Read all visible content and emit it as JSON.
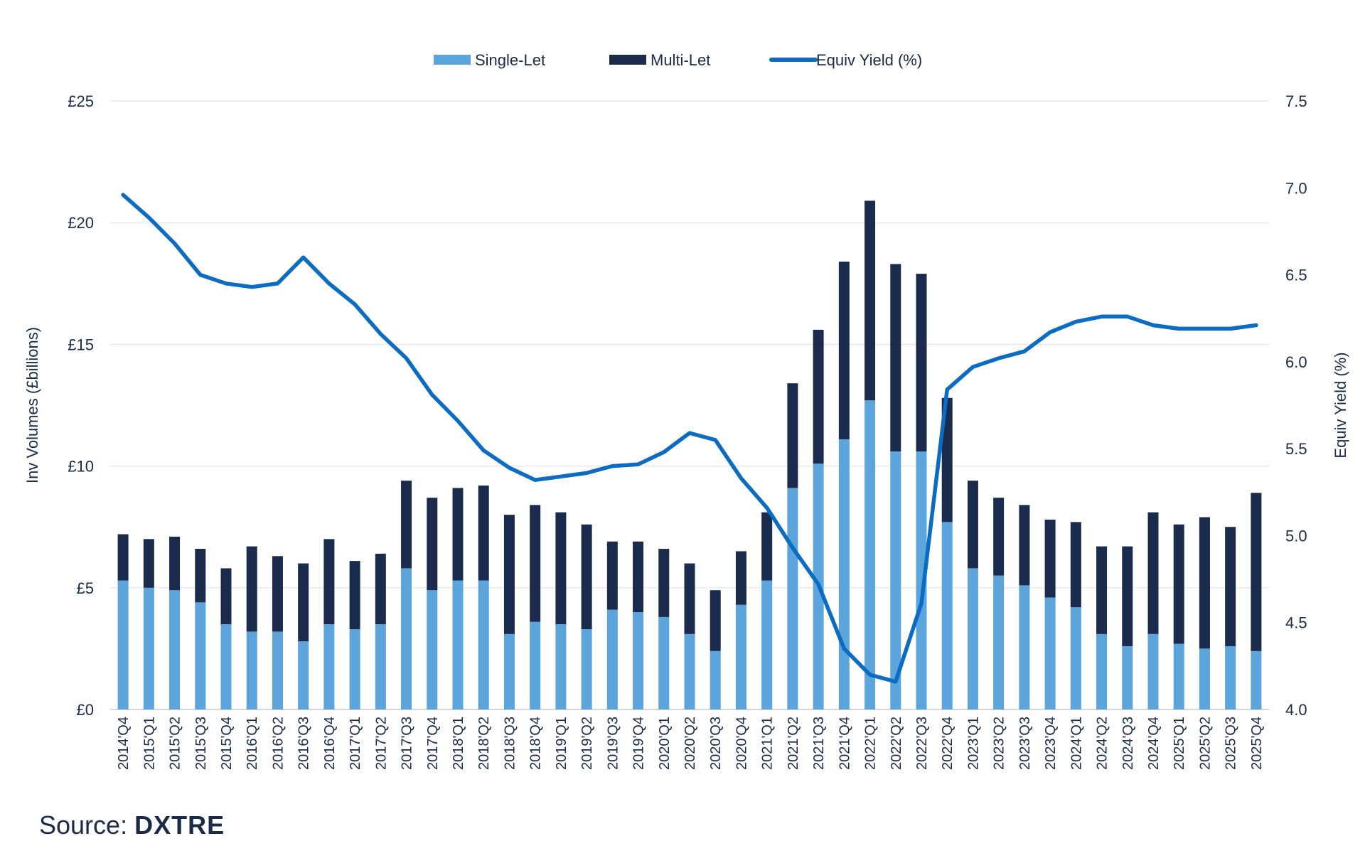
{
  "chart_data": {
    "type": "bar",
    "stacked": true,
    "categories": [
      "2014'Q4",
      "2015'Q1",
      "2015'Q2",
      "2015'Q3",
      "2015'Q4",
      "2016'Q1",
      "2016'Q2",
      "2016'Q3",
      "2016'Q4",
      "2017'Q1",
      "2017'Q2",
      "2017'Q3",
      "2017'Q4",
      "2018'Q1",
      "2018'Q2",
      "2018'Q3",
      "2018'Q4",
      "2019'Q1",
      "2019'Q2",
      "2019'Q3",
      "2019'Q4",
      "2020'Q1",
      "2020'Q2",
      "2020'Q3",
      "2020'Q4",
      "2021'Q1",
      "2021'Q2",
      "2021'Q3",
      "2021'Q4",
      "2022'Q1",
      "2022'Q2",
      "2022'Q3",
      "2022'Q4",
      "2023'Q1",
      "2023'Q2",
      "2023'Q3",
      "2023'Q4",
      "2024'Q1",
      "2024'Q2",
      "2024'Q3",
      "2024'Q4",
      "2025'Q1",
      "2025'Q2",
      "2025'Q3",
      "2025'Q4"
    ],
    "series": [
      {
        "name": "Single-Let",
        "kind": "bar",
        "axis": "left",
        "color": "#5ba4dc",
        "values": [
          5.3,
          5.0,
          4.9,
          4.4,
          3.5,
          3.2,
          3.2,
          2.8,
          3.5,
          3.3,
          3.5,
          5.8,
          4.9,
          5.3,
          5.3,
          3.1,
          3.6,
          3.5,
          3.3,
          4.1,
          4.0,
          3.8,
          3.1,
          2.4,
          4.3,
          5.3,
          9.1,
          10.1,
          11.1,
          12.7,
          10.6,
          10.6,
          7.7,
          5.8,
          5.5,
          5.1,
          4.6,
          4.2,
          3.1,
          2.6,
          3.1,
          2.7,
          2.5,
          2.6,
          2.4
        ]
      },
      {
        "name": "Multi-Let",
        "kind": "bar",
        "axis": "left",
        "color": "#1b2b4d",
        "values": [
          1.9,
          2.0,
          2.2,
          2.2,
          2.3,
          3.5,
          3.1,
          3.2,
          3.5,
          2.8,
          2.9,
          3.6,
          3.8,
          3.8,
          3.9,
          4.9,
          4.8,
          4.6,
          4.3,
          2.8,
          2.9,
          2.8,
          2.9,
          2.5,
          2.2,
          2.8,
          4.3,
          5.5,
          7.3,
          8.2,
          7.7,
          7.3,
          5.1,
          3.6,
          3.2,
          3.3,
          3.2,
          3.5,
          3.6,
          4.1,
          5.0,
          4.9,
          5.4,
          4.9,
          6.5
        ]
      },
      {
        "name": "Equiv Yield (%)",
        "kind": "line",
        "axis": "right",
        "color": "#0a6cc2",
        "values": [
          6.96,
          6.83,
          6.68,
          6.5,
          6.45,
          6.43,
          6.45,
          6.6,
          6.45,
          6.33,
          6.16,
          6.02,
          5.81,
          5.66,
          5.49,
          5.39,
          5.32,
          5.34,
          5.36,
          5.4,
          5.41,
          5.48,
          5.59,
          5.55,
          5.33,
          5.16,
          4.93,
          4.72,
          4.35,
          4.2,
          4.16,
          4.61,
          5.84,
          5.97,
          6.02,
          6.06,
          6.17,
          6.23,
          6.26,
          6.26,
          6.21,
          6.19,
          6.19,
          6.19,
          6.21
        ]
      }
    ],
    "ylabel": "Inv Volumes (£billions)",
    "ylabel_right": "Equiv Yield (%)",
    "ylim": [
      0,
      25
    ],
    "ylim_right": [
      4.0,
      7.5
    ],
    "yticks": [
      "£0",
      "£5",
      "£10",
      "£15",
      "£20",
      "£25"
    ],
    "yticks_right": [
      "4.0",
      "4.5",
      "5.0",
      "5.5",
      "6.0",
      "6.5",
      "7.0",
      "7.5"
    ],
    "grid": true,
    "legend_position": "top-center"
  },
  "source": {
    "prefix": "Source:",
    "brand": "DXTRE"
  }
}
